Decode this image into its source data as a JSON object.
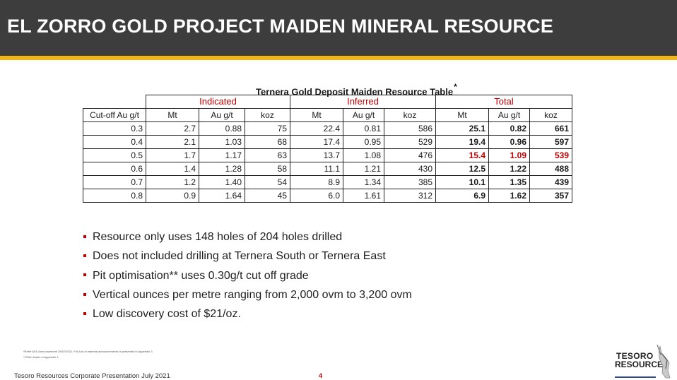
{
  "header": {
    "title": "EL ZORRO GOLD PROJECT MAIDEN MINERAL RESOURCE"
  },
  "table": {
    "title": "Ternera Gold Deposit Maiden Resource Table",
    "title_mark": "*",
    "groups": [
      "Indicated",
      "Inferred",
      "Total"
    ],
    "columns": [
      "Cut-off Au g/t",
      "Mt",
      "Au g/t",
      "koz",
      "Mt",
      "Au g/t",
      "koz",
      "Mt",
      "Au g/t",
      "koz"
    ],
    "rows": [
      [
        "0.3",
        "2.7",
        "0.88",
        "75",
        "22.4",
        "0.81",
        "586",
        "25.1",
        "0.82",
        "661"
      ],
      [
        "0.4",
        "2.1",
        "1.03",
        "68",
        "17.4",
        "0.95",
        "529",
        "19.4",
        "0.96",
        "597"
      ],
      [
        "0.5",
        "1.7",
        "1.17",
        "63",
        "13.7",
        "1.08",
        "476",
        "15.4",
        "1.09",
        "539"
      ],
      [
        "0.6",
        "1.4",
        "1.28",
        "58",
        "11.1",
        "1.21",
        "430",
        "12.5",
        "1.22",
        "488"
      ],
      [
        "0.7",
        "1.2",
        "1.40",
        "54",
        "8.9",
        "1.34",
        "385",
        "10.1",
        "1.35",
        "439"
      ],
      [
        "0.8",
        "0.9",
        "1.64",
        "45",
        "6.0",
        "1.61",
        "312",
        "6.9",
        "1.62",
        "357"
      ]
    ],
    "highlight_color": "#c00000"
  },
  "bullets": [
    "Resource only uses 148 holes of 204 holes drilled",
    "Does not included drilling at Ternera South or Ternera East",
    "Pit optimisation** uses 0.30g/t cut off grade",
    "Vertical ounces per metre ranging from 2,000 ovm to 3,200 ovm",
    "Low discovery cost of $21/oz."
  ],
  "footnotes": {
    "line1": "*Refer ASX Announcement 28/07/2021. Full List of material announcements is presented in Appendix 3",
    "line2": "**Refer Notes in Appendix 4"
  },
  "footer": {
    "text": "Tesoro Resources Corporate Presentation July 2021",
    "page": "4"
  },
  "logo": {
    "line1": "TESORO",
    "line2": "RESOURCES"
  },
  "colors": {
    "header_bg": "#3d3d3d",
    "accent_stripe": "#f3b515",
    "red": "#c00000"
  }
}
